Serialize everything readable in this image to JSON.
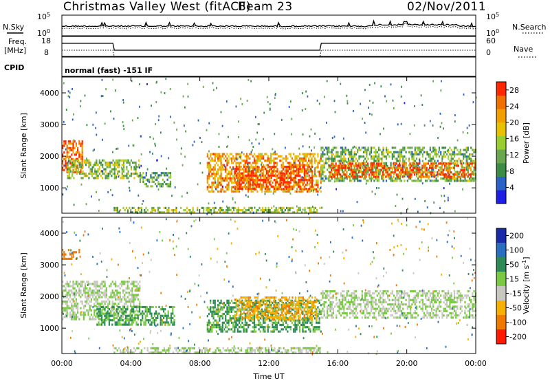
{
  "header": {
    "station": "Christmas Valley West (fitACF)",
    "beam": "Beam 23",
    "date": "02/Nov/2011"
  },
  "strip_labels": {
    "nsky": "N.Sky",
    "nsearch": "N.Search",
    "freq_line1": "Freq.",
    "freq_line2": "[MHz]",
    "nave": "Nave",
    "cpid": "CPID",
    "cpid_value": "normal (fast) -151 IF",
    "noise_ticks": [
      "10^5",
      "10^0"
    ],
    "freq_ticks": [
      "18",
      "8"
    ],
    "nave_ticks": [
      "60",
      "0"
    ]
  },
  "colors": {
    "power": [
      "#1e1ee6",
      "#2a62c8",
      "#3c8c46",
      "#6aa84f",
      "#9acd32",
      "#e8c200",
      "#f2a000",
      "#f07000",
      "#ff2800"
    ],
    "velocity": [
      "#1a2aa8",
      "#2a6fbf",
      "#2e8b57",
      "#7ac943",
      "#c8c8c0",
      "#f5b000",
      "#f07a00",
      "#ff1a00"
    ]
  },
  "chart_data": [
    {
      "type": "heatmap",
      "name_hint": "power",
      "xlabel": "",
      "ylabel": "Slant Range [km]",
      "x_range_hours": [
        0,
        24
      ],
      "ylim": [
        200,
        4500
      ],
      "y_ticks": [
        1000,
        2000,
        3000,
        4000
      ],
      "colorbar": {
        "label": "Power [dB]",
        "ticks": [
          4,
          8,
          12,
          16,
          20,
          24,
          28
        ],
        "range": [
          0,
          30
        ]
      },
      "regions": [
        {
          "t0": 0.0,
          "t1": 1.2,
          "r0": 1500,
          "r1": 2500,
          "level": 26
        },
        {
          "t0": 0.3,
          "t1": 4.5,
          "r0": 1300,
          "r1": 1900,
          "level": 14
        },
        {
          "t0": 4.5,
          "t1": 6.3,
          "r0": 1050,
          "r1": 1500,
          "level": 10
        },
        {
          "t0": 8.4,
          "t1": 15.0,
          "r0": 900,
          "r1": 2100,
          "level": 22
        },
        {
          "t0": 10.0,
          "t1": 14.5,
          "r0": 1000,
          "r1": 1700,
          "level": 28
        },
        {
          "t0": 15.0,
          "t1": 24.0,
          "r0": 1200,
          "r1": 2300,
          "level": 12
        },
        {
          "t0": 15.5,
          "t1": 24.0,
          "r0": 1350,
          "r1": 1800,
          "level": 26
        },
        {
          "t0": 3.0,
          "t1": 15.0,
          "r0": 250,
          "r1": 400,
          "level": 14
        }
      ]
    },
    {
      "type": "heatmap",
      "name_hint": "velocity",
      "xlabel": "Time UT",
      "ylabel": "Slant Range [km]",
      "x_range_hours": [
        0,
        24
      ],
      "x_ticks": [
        "00:00",
        "04:00",
        "08:00",
        "12:00",
        "16:00",
        "20:00",
        "00:00"
      ],
      "ylim": [
        200,
        4500
      ],
      "y_ticks": [
        1000,
        2000,
        3000,
        4000
      ],
      "colorbar": {
        "label": "Velocity [m s^-1]",
        "ticks": [
          200,
          100,
          50,
          15,
          -15,
          -50,
          -100,
          -200
        ]
      },
      "regions": [
        {
          "t0": 0.0,
          "t1": 4.5,
          "r0": 1300,
          "r1": 2500,
          "vel": 0
        },
        {
          "t0": 2.0,
          "t1": 6.5,
          "r0": 1100,
          "r1": 1700,
          "vel": 40
        },
        {
          "t0": 8.4,
          "t1": 15.0,
          "r0": 900,
          "r1": 1900,
          "vel": 40
        },
        {
          "t0": 10.0,
          "t1": 14.8,
          "r0": 1300,
          "r1": 2000,
          "vel": -60
        },
        {
          "t0": 15.0,
          "t1": 24.0,
          "r0": 1300,
          "r1": 2200,
          "vel": 0
        },
        {
          "t0": 0.0,
          "t1": 1.0,
          "r0": 3200,
          "r1": 3500,
          "vel": -120
        },
        {
          "t0": 3.0,
          "t1": 15.0,
          "r0": 250,
          "r1": 400,
          "vel": 0
        }
      ]
    }
  ]
}
